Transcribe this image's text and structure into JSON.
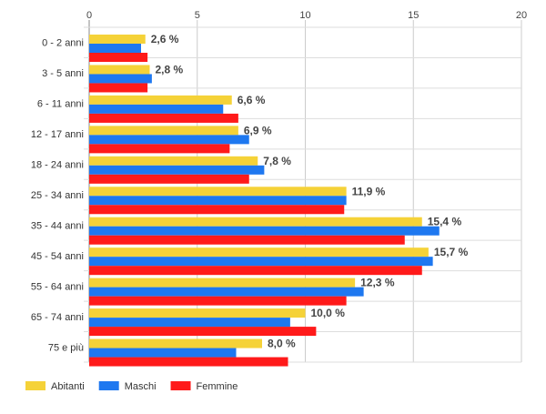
{
  "chart_data": {
    "type": "bar",
    "orientation": "horizontal",
    "categories": [
      "0 - 2 anni",
      "3 - 5 anni",
      "6 - 11 anni",
      "12 - 17 anni",
      "18 - 24 anni",
      "25 - 34 anni",
      "35 - 44 anni",
      "45 - 54 anni",
      "55 - 64 anni",
      "65 - 74 anni",
      "75 e più"
    ],
    "series": [
      {
        "name": "Abitanti",
        "color": "#F5D238",
        "values": [
          2.6,
          2.8,
          6.6,
          6.9,
          7.8,
          11.9,
          15.4,
          15.7,
          12.3,
          10.0,
          8.0
        ]
      },
      {
        "name": "Maschi",
        "color": "#1E78F0",
        "values": [
          2.4,
          2.9,
          6.2,
          7.4,
          8.1,
          11.9,
          16.2,
          15.9,
          12.7,
          9.3,
          6.8
        ]
      },
      {
        "name": "Femmine",
        "color": "#FF1A1A",
        "values": [
          2.7,
          2.7,
          6.9,
          6.5,
          7.4,
          11.8,
          14.6,
          15.4,
          11.9,
          10.5,
          9.2
        ]
      }
    ],
    "data_labels": [
      "2,6 %",
      "2,8 %",
      "6,6 %",
      "6,9 %",
      "7,8 %",
      "11,9 %",
      "15,4 %",
      "15,7 %",
      "12,3 %",
      "10,0 %",
      "8,0 %"
    ],
    "x_ticks": [
      "0",
      "5",
      "10",
      "15",
      "20"
    ],
    "xlim": [
      0,
      20
    ],
    "grid": true,
    "legend_position": "bottom-left",
    "title": "",
    "xlabel": "",
    "ylabel": ""
  }
}
